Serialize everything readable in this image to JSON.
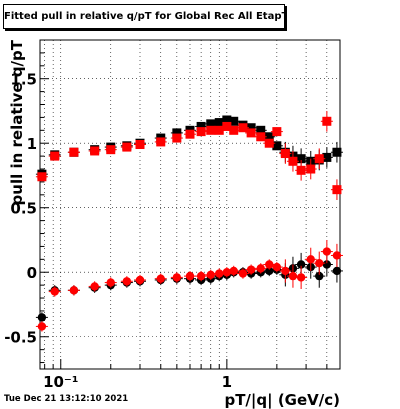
{
  "canvas": {
    "title": "Fitted pull in relative q/pT for Global Rec All EtapT",
    "timestamp": "Tue Dec 21 13:12:10 2021"
  },
  "chart_data": {
    "type": "scatter",
    "title": "Fitted pull in relative q/pT for Global Rec All EtapT",
    "xlabel": "pT/|q| (GeV/c)",
    "ylabel": "pull in relative q/pT",
    "xscale": "log",
    "xlim": [
      0.075,
      4.8
    ],
    "ylim": [
      -0.75,
      1.8
    ],
    "grid": true,
    "x_ticks": [
      {
        "value": 0.1,
        "label": "10⁻¹"
      },
      {
        "value": 1,
        "label": "1"
      }
    ],
    "y_ticks": [
      {
        "value": -0.5,
        "label": "-0.5"
      },
      {
        "value": 0,
        "label": "0"
      },
      {
        "value": 0.5,
        "label": "0.5"
      },
      {
        "value": 1,
        "label": "1"
      },
      {
        "value": 1.5,
        "label": "1.5"
      }
    ],
    "series": [
      {
        "color": "#000000",
        "marker": "circle",
        "x": [
          0.077,
          0.092,
          0.12,
          0.16,
          0.2,
          0.25,
          0.3,
          0.4,
          0.5,
          0.6,
          0.7,
          0.8,
          0.9,
          1.0,
          1.1,
          1.25,
          1.4,
          1.6,
          1.8,
          2.0,
          2.25,
          2.5,
          2.8,
          3.2,
          3.6,
          4.0,
          4.6
        ],
        "y": [
          -0.35,
          -0.14,
          -0.14,
          -0.12,
          -0.1,
          -0.08,
          -0.07,
          -0.06,
          -0.05,
          -0.05,
          -0.06,
          -0.05,
          -0.03,
          -0.02,
          0.0,
          0.0,
          -0.01,
          0.0,
          0.01,
          0.02,
          -0.02,
          0.03,
          0.06,
          0.04,
          -0.03,
          0.06,
          0.01
        ]
      },
      {
        "color": "#ff0000",
        "marker": "circle",
        "x": [
          0.077,
          0.092,
          0.12,
          0.16,
          0.2,
          0.25,
          0.3,
          0.4,
          0.5,
          0.6,
          0.7,
          0.8,
          0.9,
          1.0,
          1.1,
          1.25,
          1.4,
          1.6,
          1.8,
          2.0,
          2.25,
          2.5,
          2.8,
          3.2,
          3.6,
          4.0,
          4.6
        ],
        "y": [
          -0.42,
          -0.15,
          -0.14,
          -0.11,
          -0.08,
          -0.07,
          -0.06,
          -0.05,
          -0.04,
          -0.03,
          -0.03,
          -0.02,
          -0.01,
          0.0,
          0.01,
          -0.01,
          0.02,
          0.03,
          0.06,
          0.04,
          0.01,
          -0.03,
          -0.04,
          0.1,
          0.07,
          0.16,
          0.13
        ]
      },
      {
        "color": "#000000",
        "marker": "square",
        "x": [
          0.077,
          0.092,
          0.12,
          0.16,
          0.2,
          0.25,
          0.3,
          0.4,
          0.5,
          0.6,
          0.7,
          0.8,
          0.9,
          1.0,
          1.1,
          1.25,
          1.4,
          1.6,
          1.8,
          2.0,
          2.25,
          2.5,
          2.8,
          3.2,
          3.6,
          4.0,
          4.6
        ],
        "y": [
          0.76,
          0.91,
          0.93,
          0.95,
          0.97,
          0.98,
          1.0,
          1.04,
          1.08,
          1.1,
          1.13,
          1.15,
          1.16,
          1.18,
          1.17,
          1.14,
          1.12,
          1.1,
          1.05,
          0.98,
          0.93,
          0.9,
          0.88,
          0.86,
          0.87,
          0.89,
          0.93
        ]
      },
      {
        "color": "#ff0000",
        "marker": "square",
        "x": [
          0.077,
          0.092,
          0.12,
          0.16,
          0.2,
          0.25,
          0.3,
          0.4,
          0.5,
          0.6,
          0.7,
          0.8,
          0.9,
          1.0,
          1.1,
          1.25,
          1.4,
          1.6,
          1.8,
          2.0,
          2.25,
          2.5,
          2.8,
          3.2,
          3.6,
          4.0,
          4.6
        ],
        "y": [
          0.74,
          0.9,
          0.93,
          0.94,
          0.95,
          0.97,
          0.99,
          1.01,
          1.04,
          1.07,
          1.09,
          1.1,
          1.1,
          1.13,
          1.1,
          1.12,
          1.08,
          1.05,
          1.0,
          1.09,
          0.92,
          0.86,
          0.79,
          0.8,
          0.88,
          1.17,
          0.64
        ]
      }
    ]
  }
}
